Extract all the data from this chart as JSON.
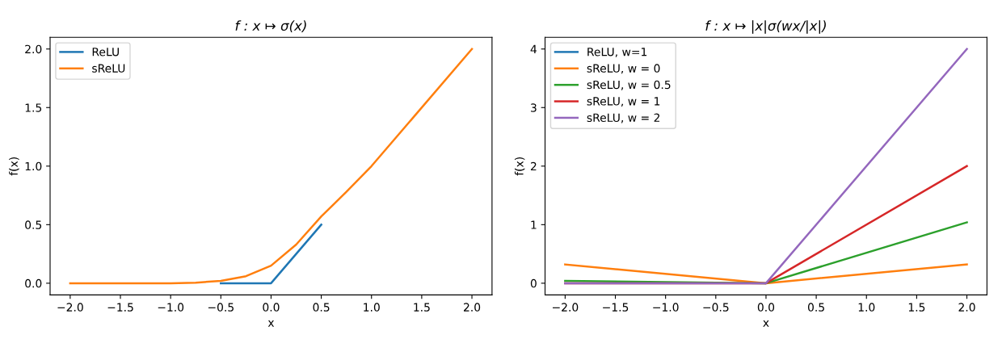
{
  "chart_data": [
    {
      "type": "line",
      "title": "f : x ↦ σ(x)",
      "xlabel": "x",
      "ylabel": "f(x)",
      "xlim": [
        -2.2,
        2.2
      ],
      "ylim": [
        -0.1,
        2.1
      ],
      "xticks": [
        {
          "value": -2,
          "label": "−2.0"
        },
        {
          "value": -1.5,
          "label": "−1.5"
        },
        {
          "value": -1,
          "label": "−1.0"
        },
        {
          "value": -0.5,
          "label": "−0.5"
        },
        {
          "value": 0,
          "label": "0.0"
        },
        {
          "value": 0.5,
          "label": "0.5"
        },
        {
          "value": 1,
          "label": "1.0"
        },
        {
          "value": 1.5,
          "label": "1.5"
        },
        {
          "value": 2,
          "label": "2.0"
        }
      ],
      "yticks": [
        {
          "value": 0,
          "label": "0.0"
        },
        {
          "value": 0.5,
          "label": "0.5"
        },
        {
          "value": 1,
          "label": "1.0"
        },
        {
          "value": 1.5,
          "label": "1.5"
        },
        {
          "value": 2,
          "label": "2.0"
        }
      ],
      "legend": "top left",
      "grid": false,
      "series": [
        {
          "name": "ReLU",
          "color": "#1f77b4",
          "x": [
            -0.5,
            0,
            0.5
          ],
          "values": [
            0,
            0,
            0.5
          ]
        },
        {
          "name": "sReLU",
          "color": "#ff7f0e",
          "x": [
            -2,
            -1,
            -0.75,
            -0.5,
            -0.25,
            0,
            0.25,
            0.5,
            0.75,
            1,
            2
          ],
          "values": [
            0,
            0,
            0.005,
            0.02,
            0.06,
            0.15,
            0.33,
            0.57,
            0.78,
            1.0,
            2.0
          ]
        }
      ]
    },
    {
      "type": "line",
      "title": "f : x ↦ |x|σ(wx/|x|)",
      "xlabel": "x",
      "ylabel": "f(x)",
      "xlim": [
        -2.2,
        2.2
      ],
      "ylim": [
        -0.2,
        4.2
      ],
      "xticks": [
        {
          "value": -2,
          "label": "−2.0"
        },
        {
          "value": -1.5,
          "label": "−1.5"
        },
        {
          "value": -1,
          "label": "−1.0"
        },
        {
          "value": -0.5,
          "label": "−0.5"
        },
        {
          "value": 0,
          "label": "0.0"
        },
        {
          "value": 0.5,
          "label": "0.5"
        },
        {
          "value": 1,
          "label": "1.0"
        },
        {
          "value": 1.5,
          "label": "1.5"
        },
        {
          "value": 2,
          "label": "2.0"
        }
      ],
      "yticks": [
        0,
        1,
        2,
        3,
        4
      ],
      "legend": "top left",
      "grid": false,
      "series": [
        {
          "name": "ReLU, w=1",
          "color": "#1f77b4"
        },
        {
          "name": "sReLU, w = 0",
          "color": "#ff7f0e",
          "x": [
            -2,
            0,
            2
          ],
          "values": [
            0.32,
            0,
            0.32
          ]
        },
        {
          "name": "sReLU, w = 0.5",
          "color": "#2ca02c",
          "x": [
            -2,
            0,
            2
          ],
          "values": [
            0.04,
            0,
            1.04
          ]
        },
        {
          "name": "sReLU, w = 1",
          "color": "#d62728",
          "x": [
            -2,
            0,
            2
          ],
          "values": [
            0,
            0,
            2.0
          ]
        },
        {
          "name": "sReLU, w = 2",
          "color": "#9467bd",
          "x": [
            -2,
            0,
            2
          ],
          "values": [
            0,
            0,
            4.0
          ]
        }
      ]
    }
  ]
}
